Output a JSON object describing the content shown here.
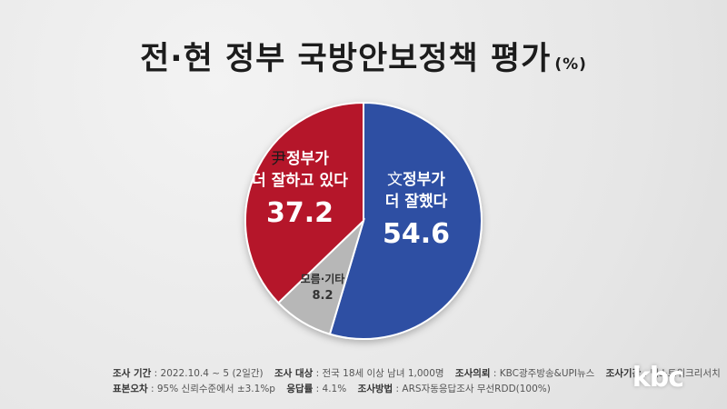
{
  "title": "전·현 정부 국방안보정책 평가",
  "title_unit": "(%)",
  "chart_data": {
    "type": "pie",
    "slices": [
      {
        "prefix": "文",
        "label_line1": "정부가",
        "label_line2": "더 잘했다",
        "value": 54.6,
        "value_text": "54.6",
        "color": "#2f4fa3"
      },
      {
        "prefix": "",
        "label_line1": "모름·기타",
        "label_line2": "",
        "value": 8.2,
        "value_text": "8.2",
        "color": "#b7b7b7"
      },
      {
        "prefix": "尹",
        "label_line1": "정부가",
        "label_line2": "더 잘하고 있다",
        "value": 37.2,
        "value_text": "37.2",
        "color": "#b5192a"
      }
    ]
  },
  "footer": {
    "period_label": "조사 기간",
    "period_value": "2022.10.4 ~ 5 (2일간)",
    "target_label": "조사 대상",
    "target_value": "전국 18세 이상 남녀 1,000명",
    "client_label": "조사의뢰",
    "client_value": "KBC광주방송&UPI뉴스",
    "agency_label": "조사기관",
    "agency_value": "넥스트위크리서치",
    "error_label": "표본오차",
    "error_value": "95% 신뢰수준에서 ±3.1%p",
    "response_label": "응답률",
    "response_value": "4.1%",
    "method_label": "조사방법",
    "method_value": "ARS자동응답조사 무선RDD(100%)"
  },
  "logo": "kbc"
}
